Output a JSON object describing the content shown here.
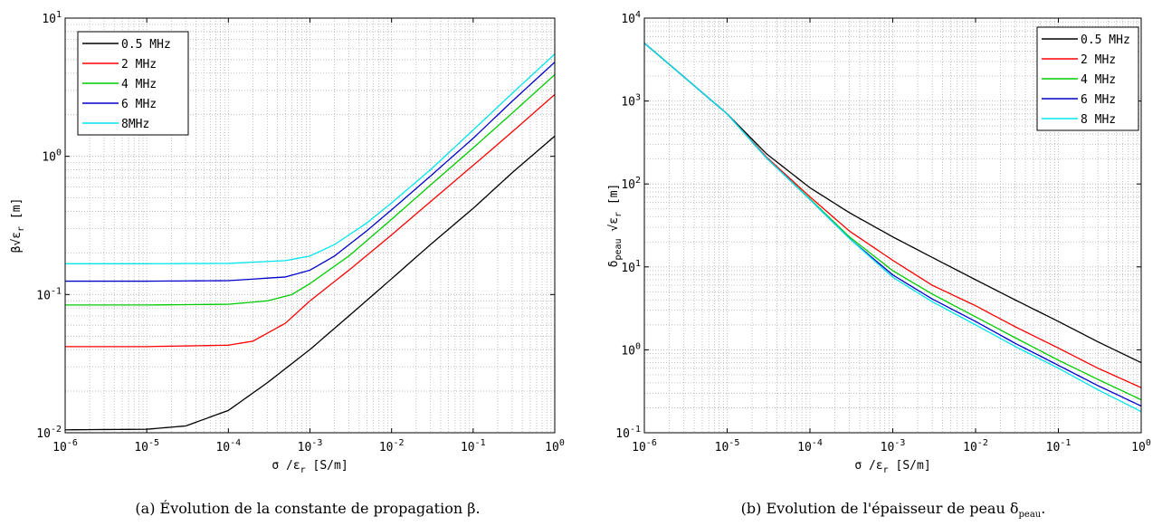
{
  "chart_data": [
    {
      "type": "line",
      "xscale": "log",
      "yscale": "log",
      "xlim": [
        1e-06,
        1
      ],
      "ylim": [
        0.01,
        10
      ],
      "grid": true,
      "legend_position": "top-left",
      "xlabel": "σ /ε_r [S/m]",
      "ylabel": "β√ε_r [m]",
      "xticks": [
        "10^-6",
        "10^-5",
        "10^-4",
        "10^-3",
        "10^-2",
        "10^-1",
        "10^0"
      ],
      "yticks": [
        "10^-2",
        "10^-1",
        "10^0",
        "10^1"
      ],
      "caption": "(a) Évolution de la constante de propagation β.",
      "series": [
        {
          "name": "0.5 MHz",
          "color": "#000000",
          "x": [
            1e-06,
            1e-05,
            3e-05,
            0.0001,
            0.0003,
            0.001,
            0.003,
            0.01,
            0.03,
            0.1,
            0.3,
            1
          ],
          "y": [
            0.0105,
            0.0106,
            0.0112,
            0.0145,
            0.023,
            0.04,
            0.07,
            0.13,
            0.23,
            0.42,
            0.76,
            1.4
          ]
        },
        {
          "name": "2 MHz",
          "color": "#ff0000",
          "x": [
            1e-06,
            1e-05,
            0.0001,
            0.0002,
            0.0005,
            0.001,
            0.003,
            0.01,
            0.03,
            0.1,
            0.3,
            1
          ],
          "y": [
            0.042,
            0.042,
            0.043,
            0.046,
            0.062,
            0.09,
            0.15,
            0.27,
            0.47,
            0.86,
            1.5,
            2.8
          ]
        },
        {
          "name": "4 MHz",
          "color": "#00cc00",
          "x": [
            1e-06,
            1e-05,
            0.0001,
            0.0003,
            0.0006,
            0.001,
            0.003,
            0.01,
            0.03,
            0.1,
            0.3,
            1
          ],
          "y": [
            0.084,
            0.084,
            0.085,
            0.09,
            0.1,
            0.12,
            0.19,
            0.35,
            0.62,
            1.15,
            2.05,
            3.9
          ]
        },
        {
          "name": "6 MHz",
          "color": "#0000cc",
          "x": [
            1e-06,
            1e-05,
            0.0001,
            0.0005,
            0.001,
            0.002,
            0.005,
            0.01,
            0.03,
            0.1,
            0.3,
            1
          ],
          "y": [
            0.125,
            0.125,
            0.126,
            0.134,
            0.15,
            0.19,
            0.29,
            0.41,
            0.72,
            1.35,
            2.5,
            4.8
          ]
        },
        {
          "name": "8MHz",
          "color": "#00e5ee",
          "x": [
            1e-06,
            1e-05,
            0.0001,
            0.0005,
            0.001,
            0.002,
            0.005,
            0.01,
            0.03,
            0.1,
            0.3,
            1
          ],
          "y": [
            0.167,
            0.167,
            0.168,
            0.176,
            0.19,
            0.23,
            0.33,
            0.46,
            0.8,
            1.55,
            2.85,
            5.5
          ]
        }
      ]
    },
    {
      "type": "line",
      "xscale": "log",
      "yscale": "log",
      "xlim": [
        1e-06,
        1
      ],
      "ylim": [
        0.1,
        10000
      ],
      "grid": true,
      "legend_position": "top-right",
      "xlabel": "σ /ε_r [S/m]",
      "ylabel": "δ_peau √ε_r [m]",
      "xticks": [
        "10^-6",
        "10^-5",
        "10^-4",
        "10^-3",
        "10^-2",
        "10^-1",
        "10^0"
      ],
      "yticks": [
        "10^-1",
        "10^0",
        "10^1",
        "10^2",
        "10^3",
        "10^4"
      ],
      "caption": "(b) Evolution de l'épaisseur de peau δ_peau.",
      "series": [
        {
          "name": "0.5 MHz",
          "color": "#000000",
          "x": [
            1e-06,
            1e-05,
            3e-05,
            0.0001,
            0.0003,
            0.001,
            0.003,
            0.01,
            0.03,
            0.1,
            0.3,
            1
          ],
          "y": [
            5000,
            700,
            230,
            90,
            45,
            23,
            13,
            7,
            4,
            2.2,
            1.25,
            0.7
          ]
        },
        {
          "name": "2 MHz",
          "color": "#ff0000",
          "x": [
            1e-06,
            1e-05,
            3e-05,
            0.0001,
            0.0003,
            0.001,
            0.003,
            0.01,
            0.03,
            0.1,
            0.3,
            1
          ],
          "y": [
            5000,
            700,
            210,
            70,
            27,
            12,
            6,
            3.4,
            1.9,
            1.05,
            0.6,
            0.35
          ]
        },
        {
          "name": "4 MHz",
          "color": "#00cc00",
          "x": [
            1e-06,
            1e-05,
            3e-05,
            0.0001,
            0.0003,
            0.001,
            0.003,
            0.01,
            0.03,
            0.1,
            0.3,
            1
          ],
          "y": [
            5000,
            700,
            205,
            66,
            23,
            9,
            4.7,
            2.5,
            1.4,
            0.75,
            0.44,
            0.25
          ]
        },
        {
          "name": "6 MHz",
          "color": "#0000cc",
          "x": [
            1e-06,
            1e-05,
            3e-05,
            0.0001,
            0.0003,
            0.001,
            0.003,
            0.01,
            0.03,
            0.1,
            0.3,
            1
          ],
          "y": [
            5000,
            700,
            205,
            65,
            22,
            8,
            4.1,
            2.2,
            1.2,
            0.65,
            0.37,
            0.21
          ]
        },
        {
          "name": "8 MHz",
          "color": "#00e5ee",
          "x": [
            1e-06,
            1e-05,
            3e-05,
            0.0001,
            0.0003,
            0.001,
            0.003,
            0.01,
            0.03,
            0.1,
            0.3,
            1
          ],
          "y": [
            5000,
            700,
            205,
            65,
            22,
            7.5,
            3.8,
            2.0,
            1.1,
            0.6,
            0.33,
            0.18
          ]
        }
      ]
    }
  ]
}
